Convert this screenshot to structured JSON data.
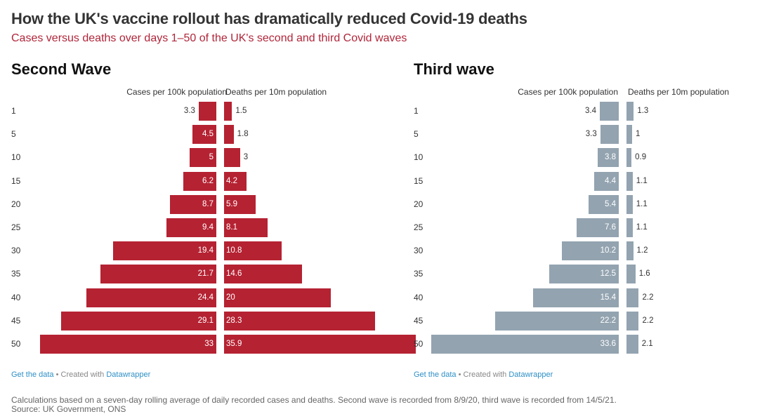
{
  "title": "How the UK's vaccine rollout has dramatically reduced Covid-19 deaths",
  "subtitle": "Cases versus deaths over days 1–50 of the UK's second and third Covid waves",
  "colors": {
    "second_wave": "#b52232",
    "third_wave": "#93a3b0",
    "subtitle": "#b0263a",
    "link": "#2e8fc6"
  },
  "chart_data": [
    {
      "type": "bar",
      "title": "Second Wave",
      "left_label": "Cases per 100k population",
      "right_label": "Deaths per 10m population",
      "categories": [
        "1",
        "5",
        "10",
        "15",
        "20",
        "25",
        "30",
        "35",
        "40",
        "45",
        "50"
      ],
      "series": [
        {
          "name": "Cases per 100k population",
          "values": [
            3.3,
            4.5,
            5,
            6.2,
            8.7,
            9.4,
            19.4,
            21.7,
            24.4,
            29.1,
            33
          ]
        },
        {
          "name": "Deaths per 10m population",
          "values": [
            1.5,
            1.8,
            3,
            4.2,
            5.9,
            8.1,
            10.8,
            14.6,
            20,
            28.3,
            35.9
          ]
        }
      ]
    },
    {
      "type": "bar",
      "title": "Third wave",
      "left_label": "Cases per 100k population",
      "right_label": "Deaths per 10m population",
      "categories": [
        "1",
        "5",
        "10",
        "15",
        "20",
        "25",
        "30",
        "35",
        "40",
        "45",
        "50"
      ],
      "series": [
        {
          "name": "Cases per 100k population",
          "values": [
            3.4,
            3.3,
            3.8,
            4.4,
            5.4,
            7.6,
            10.2,
            12.5,
            15.4,
            22.2,
            33.6
          ]
        },
        {
          "name": "Deaths per 10m population",
          "values": [
            1.3,
            1,
            0.9,
            1.1,
            1.1,
            1.1,
            1.2,
            1.6,
            2.2,
            2.2,
            2.1
          ]
        }
      ]
    }
  ],
  "footer": {
    "get_data": "Get the data",
    "created_with": " • Created with ",
    "datawrapper": "Datawrapper"
  },
  "notes": {
    "calculation": "Calculations based on a seven-day rolling average of daily recorded cases and deaths. Second wave is recorded from 8/9/20, third wave is recorded from 14/5/21.",
    "source": "Source: UK Government, ONS"
  }
}
